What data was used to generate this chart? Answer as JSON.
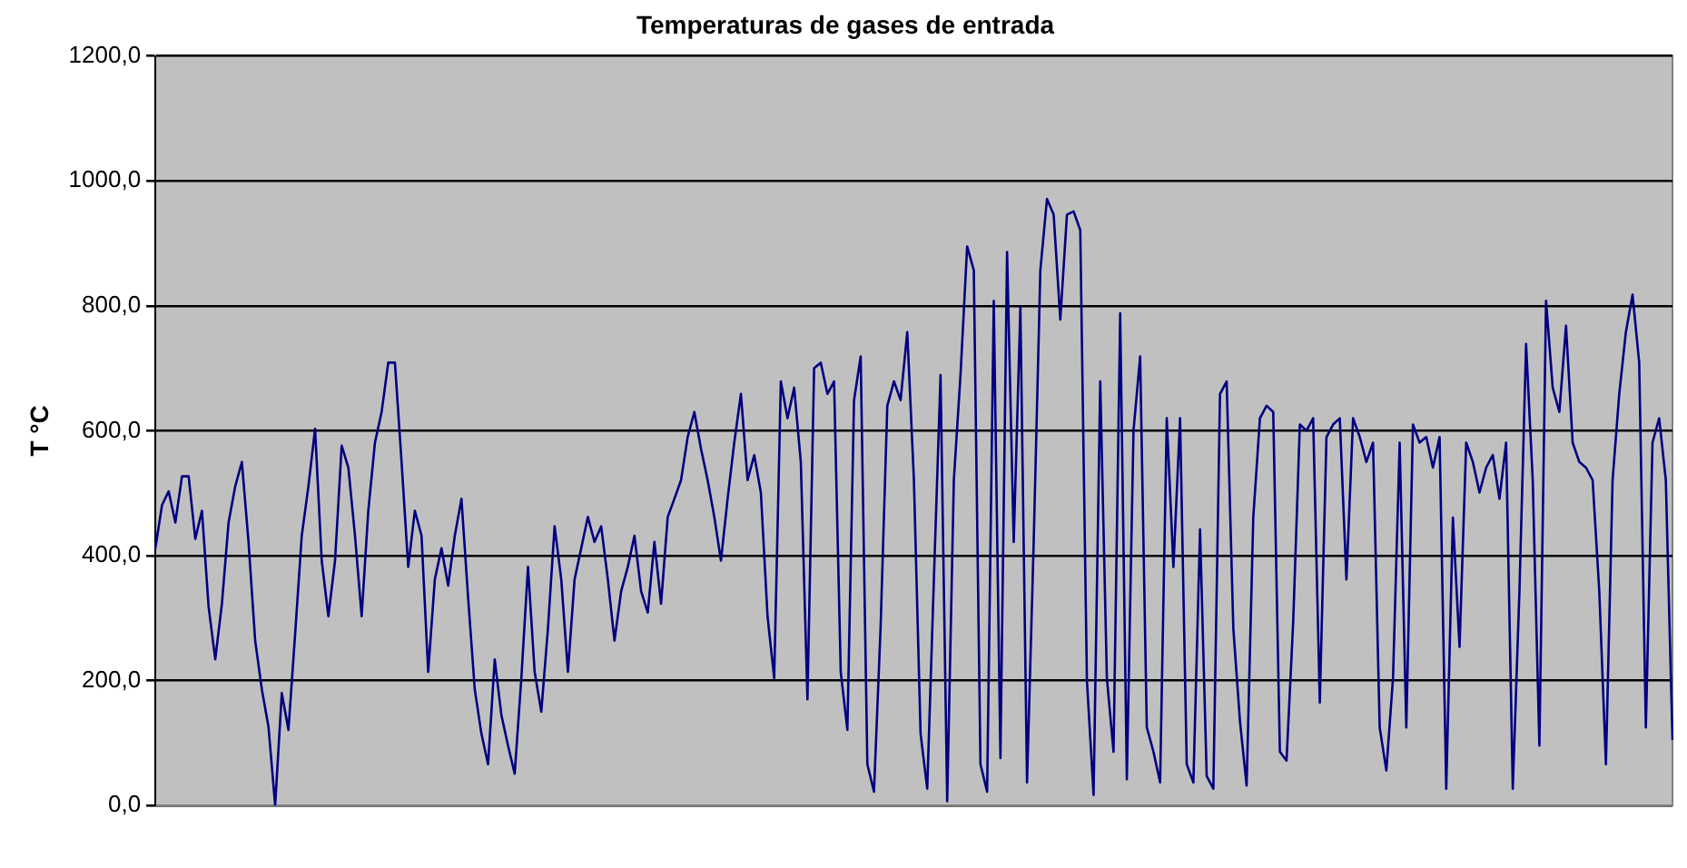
{
  "chart_data": {
    "type": "line",
    "title": "Temperaturas de gases de entrada",
    "ylabel": "T °C",
    "categories": [
      null,
      null,
      null,
      null,
      null,
      null,
      null,
      null,
      null,
      null,
      null,
      null,
      null,
      null,
      null,
      null,
      null,
      null,
      null,
      null,
      null,
      null,
      null,
      null,
      null,
      null,
      null,
      null,
      null,
      null,
      null,
      null,
      null,
      null,
      null,
      null,
      null,
      null,
      null,
      null,
      null,
      null,
      null,
      null,
      null,
      null,
      null,
      null,
      null,
      null,
      null,
      null,
      null,
      null,
      null,
      null,
      null,
      null,
      null,
      null,
      null,
      null,
      null,
      null,
      null,
      null,
      null,
      null,
      null,
      null,
      null,
      null,
      null,
      null,
      null,
      null,
      null,
      null,
      null,
      null,
      null,
      null,
      null,
      null,
      null,
      null,
      null,
      null,
      null,
      null,
      null,
      null,
      null,
      null,
      null,
      null,
      null,
      null,
      null,
      null,
      null,
      null,
      null,
      null,
      null,
      null,
      null,
      null,
      null,
      null,
      null,
      null,
      null,
      null,
      null,
      null,
      null,
      null,
      null,
      null,
      null,
      null,
      null,
      null,
      null,
      null,
      null,
      null,
      null,
      null,
      null,
      null,
      null,
      null,
      null,
      null,
      null,
      null,
      null,
      null,
      null,
      null,
      null,
      null,
      null,
      null,
      null,
      null,
      null,
      null,
      null,
      null,
      null,
      null,
      null,
      null,
      null,
      null,
      null,
      null,
      null,
      null,
      null,
      null,
      null,
      null,
      null,
      null,
      null,
      null,
      null,
      null,
      null,
      null,
      null,
      null,
      null,
      null,
      null,
      null,
      null,
      null,
      null,
      null,
      null,
      null,
      null,
      null,
      null,
      null,
      null,
      null,
      null,
      null,
      null,
      null,
      null,
      null,
      null,
      null,
      null,
      null,
      null,
      null,
      null,
      null,
      null,
      null,
      null,
      null,
      null,
      null,
      null,
      null,
      null,
      null,
      null,
      null,
      null,
      null,
      null,
      null,
      null,
      null,
      null,
      null,
      null,
      null,
      null
    ],
    "series": [
      {
        "color": "#000080",
        "values": [
          412,
          481,
          503,
          453,
          527,
          527,
          427,
          472,
          318,
          234,
          323,
          453,
          511,
          550,
          422,
          264,
          186,
          126,
          0,
          180,
          121,
          274,
          432,
          511,
          603,
          392,
          303,
          392,
          576,
          541,
          432,
          303,
          472,
          581,
          630,
          709,
          709,
          550,
          382,
          472,
          432,
          214,
          362,
          412,
          352,
          432,
          491,
          333,
          186,
          115,
          66,
          234,
          145,
          96,
          51,
          204,
          382,
          214,
          150,
          284,
          447,
          362,
          214,
          362,
          412,
          462,
          422,
          447,
          362,
          264,
          343,
          382,
          432,
          343,
          309,
          422,
          323,
          462,
          491,
          521,
          590,
          630,
          571,
          521,
          462,
          392,
          491,
          581,
          659,
          521,
          561,
          501,
          303,
          204,
          679,
          620,
          669,
          550,
          170,
          700,
          709,
          659,
          679,
          214,
          121,
          649,
          719,
          66,
          22,
          288,
          640,
          679,
          649,
          758,
          521,
          115,
          27,
          362,
          689,
          7,
          521,
          689,
          895,
          857,
          66,
          22,
          808,
          76,
          886,
          422,
          798,
          37,
          422,
          857,
          971,
          946,
          778,
          946,
          951,
          921,
          200,
          17,
          679,
          204,
          86,
          788,
          42,
          600,
          719,
          125,
          86,
          37,
          620,
          382,
          620,
          66,
          37,
          442,
          47,
          27,
          659,
          679,
          284,
          135,
          32,
          461,
          620,
          640,
          630,
          86,
          72,
          294,
          610,
          600,
          620,
          165,
          590,
          610,
          620,
          362,
          620,
          590,
          550,
          581,
          125,
          56,
          204,
          581,
          125,
          610,
          581,
          590,
          541,
          590,
          27,
          461,
          254,
          581,
          550,
          501,
          541,
          561,
          491,
          581,
          27,
          343,
          739,
          521,
          96,
          808,
          669,
          630,
          768,
          581,
          550,
          541,
          521,
          343,
          66,
          521,
          659,
          758,
          818,
          709,
          125,
          581,
          620,
          521,
          105
        ]
      }
    ],
    "ylim": [
      0,
      1200
    ],
    "yticks": [
      {
        "value": 0,
        "label": "0,0"
      },
      {
        "value": 200,
        "label": "200,0"
      },
      {
        "value": 400,
        "label": "400,0"
      },
      {
        "value": 600,
        "label": "600,0"
      },
      {
        "value": 800,
        "label": "800,0"
      },
      {
        "value": 1000,
        "label": "1000,0"
      },
      {
        "value": 1200,
        "label": "1200,0"
      }
    ],
    "grid": "y",
    "marker": "none",
    "line_style": "solid",
    "legend": false
  }
}
